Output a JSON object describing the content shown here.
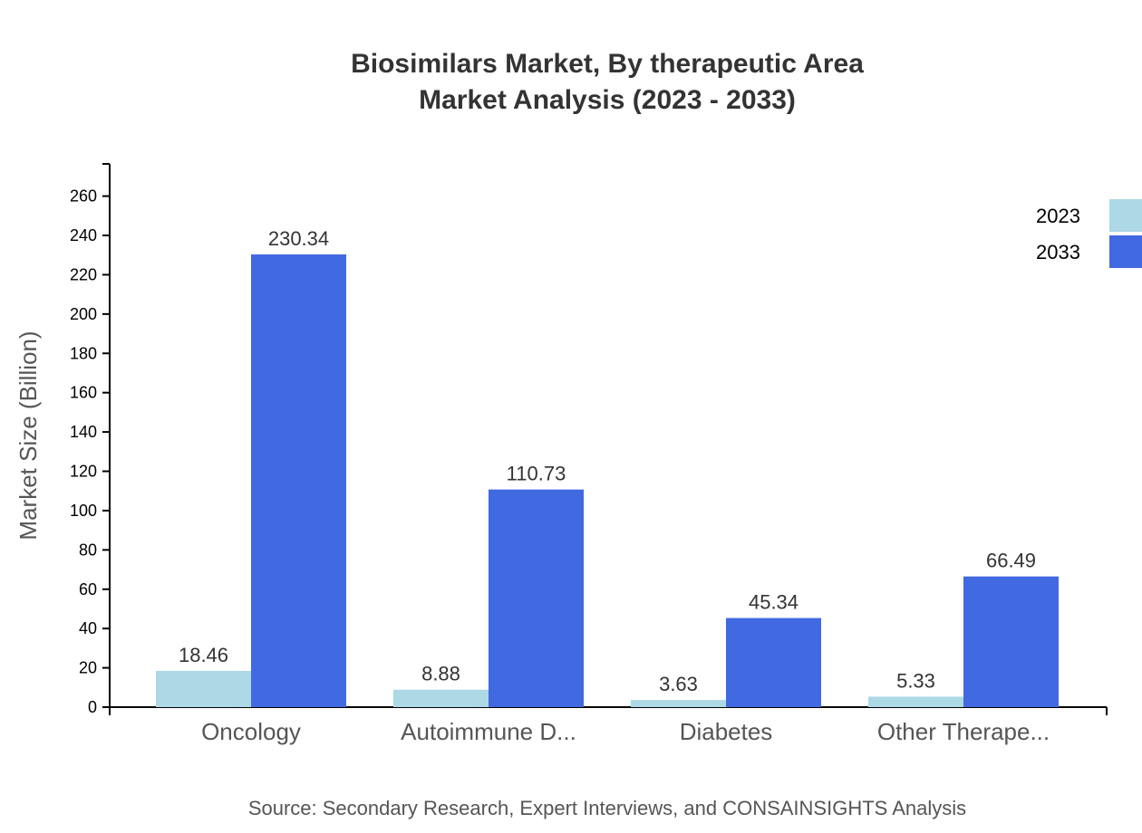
{
  "chart_data": {
    "type": "bar",
    "title": "Biosimilars Market, By therapeutic Area",
    "subtitle": "Market Analysis (2023 - 2033)",
    "xlabel": "",
    "ylabel": "Market Size (Billion)",
    "ylim": [
      0,
      276.4
    ],
    "yticks": [
      0,
      20,
      40,
      60,
      80,
      100,
      120,
      140,
      160,
      180,
      200,
      220,
      240,
      260
    ],
    "categories": [
      "Oncology",
      "Autoimmune D...",
      "Diabetes",
      "Other Therape..."
    ],
    "series": [
      {
        "name": "2023",
        "color": "#ADD8E6",
        "values": [
          18.46,
          8.88,
          3.63,
          5.33
        ]
      },
      {
        "name": "2033",
        "color": "#4169E1",
        "values": [
          230.34,
          110.73,
          45.34,
          66.49
        ]
      }
    ],
    "grid": false,
    "legend": "top-right",
    "source": "Source: Secondary Research, Expert Interviews, and CONSAINSIGHTS Analysis"
  }
}
